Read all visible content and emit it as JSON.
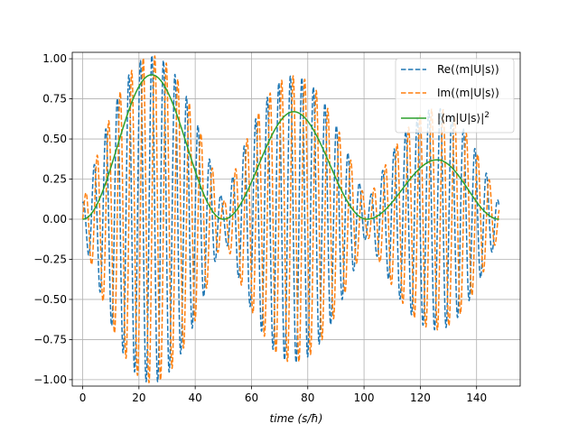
{
  "chart_data": {
    "type": "line",
    "title": "",
    "xlabel": "time (s/ħ)",
    "ylabel": "",
    "xlim": [
      -3.7,
      155.5
    ],
    "ylim": [
      -1.04,
      1.04
    ],
    "xticks": [
      0,
      20,
      40,
      60,
      80,
      100,
      120,
      140
    ],
    "xtick_labels": [
      "0",
      "20",
      "40",
      "60",
      "80",
      "100",
      "120",
      "140"
    ],
    "yticks": [
      -1.0,
      -0.75,
      -0.5,
      -0.25,
      0.0,
      0.25,
      0.5,
      0.75,
      1.0
    ],
    "ytick_labels": [
      "−1.00",
      "−0.75",
      "−0.50",
      "−0.25",
      "0.00",
      "0.25",
      "0.50",
      "0.75",
      "1.00"
    ],
    "grid": true,
    "legend_position": "top-right",
    "x_range": [
      0,
      148
    ],
    "envelope_peaks": [
      {
        "t": 24.5,
        "value": 0.9
      },
      {
        "t": 75,
        "value": 0.67
      },
      {
        "t": 126,
        "value": 0.37
      }
    ],
    "envelope_zeros": [
      0,
      50,
      101,
      148
    ],
    "oscillation_period": 4.1,
    "series": [
      {
        "name": "Re(⟨m|U|s⟩)",
        "legend": "Re(⟨m|U|s⟩)",
        "style": "dashed",
        "color": "#1f77b4"
      },
      {
        "name": "Im(⟨m|U|s⟩)",
        "legend": "Im(⟨m|U|s⟩)",
        "style": "dashed",
        "color": "#ff7f0e"
      },
      {
        "name": "|⟨m|U|s⟩|²",
        "legend": "|⟨m|U|s⟩|",
        "legend_sup": "2",
        "style": "solid",
        "color": "#2ca02c"
      }
    ]
  }
}
